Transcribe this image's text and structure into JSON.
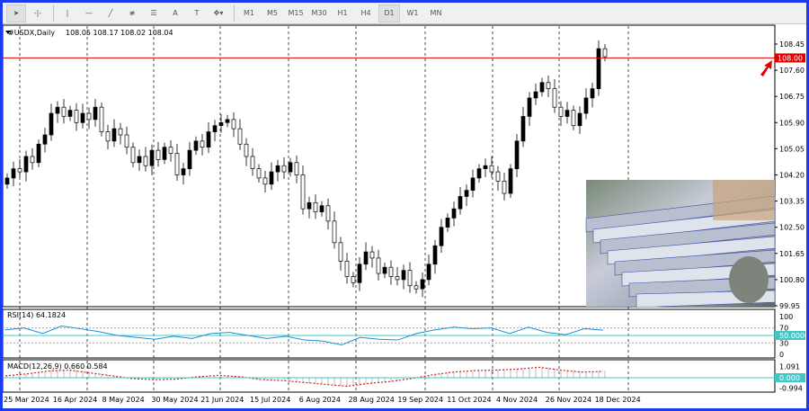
{
  "toolbar": {
    "tools": [
      "cursor-icon",
      "crosshair-icon",
      "vertical-line-icon",
      "horizontal-line-icon",
      "trendline-icon",
      "fibonacci-icon",
      "channel-icon",
      "text-icon",
      "text-label-icon",
      "shapes-icon"
    ],
    "text_A": "A",
    "text_T": "T",
    "timeframes": [
      "M1",
      "M5",
      "M15",
      "M30",
      "H1",
      "H4",
      "D1",
      "W1",
      "MN"
    ],
    "active_timeframe": "D1"
  },
  "chart": {
    "title": "#USDX,Daily",
    "ohlc": "108.05 108.17 108.02 108.04",
    "price_ticks": [
      "108.45",
      "107.60",
      "106.75",
      "105.90",
      "105.05",
      "104.20",
      "103.35",
      "102.50",
      "101.65",
      "100.80",
      "99.95"
    ],
    "hline_label": "108.00",
    "hline_color": "#e00000",
    "up_color": "#000000",
    "down_color": "#ffffff"
  },
  "rsi": {
    "label": "RSI(14) 64.1824",
    "ticks": [
      "100",
      "70",
      "50.0000",
      "30",
      "0"
    ],
    "color": "#1e90d0",
    "level_color": "#40c8c8"
  },
  "macd": {
    "label": "MACD(12,26,9) 0.660 0.584",
    "ticks": [
      "1.091",
      "0.000",
      "-0.994"
    ],
    "signal_color": "#d02020"
  },
  "dates": [
    "25 Mar 2024",
    "16 Apr 2024",
    "8 May 2024",
    "30 May 2024",
    "21 Jun 2024",
    "15 Jul 2024",
    "6 Aug 2024",
    "28 Aug 2024",
    "19 Sep 2024",
    "11 Oct 2024",
    "4 Nov 2024",
    "26 Nov 2024",
    "18 Dec 2024"
  ],
  "chart_data": {
    "type": "candlestick",
    "closes": [
      104.1,
      104.4,
      104.3,
      104.8,
      104.6,
      105.2,
      105.5,
      106.2,
      106.4,
      106.1,
      106.3,
      105.9,
      106.2,
      106.0,
      106.4,
      105.6,
      105.3,
      105.7,
      105.5,
      105.1,
      104.6,
      104.8,
      104.5,
      105.0,
      104.7,
      105.1,
      104.9,
      104.2,
      104.4,
      105.0,
      105.3,
      105.1,
      105.6,
      105.8,
      105.9,
      106.0,
      105.7,
      105.2,
      104.8,
      104.4,
      104.1,
      103.9,
      104.3,
      104.5,
      104.3,
      104.6,
      104.2,
      103.1,
      103.3,
      103.0,
      103.2,
      102.7,
      102.0,
      101.4,
      100.9,
      100.7,
      101.3,
      101.7,
      101.5,
      101.0,
      101.2,
      100.9,
      100.8,
      101.1,
      100.6,
      100.5,
      100.8,
      101.3,
      101.9,
      102.5,
      102.8,
      103.1,
      103.5,
      103.7,
      104.1,
      104.4,
      104.5,
      104.3,
      104.0,
      103.6,
      104.4,
      105.3,
      106.1,
      106.7,
      106.9,
      107.2,
      107.0,
      106.4,
      106.1,
      106.3,
      105.8,
      106.2,
      106.7,
      107.0,
      108.3,
      108.04
    ],
    "rsi": [
      65,
      70,
      55,
      75,
      68,
      60,
      50,
      45,
      40,
      48,
      42,
      55,
      58,
      50,
      42,
      48,
      38,
      35,
      25,
      45,
      40,
      38,
      55,
      65,
      72,
      68,
      70,
      55,
      72,
      58,
      52,
      68,
      64
    ],
    "macd_hist": [
      0.2,
      0.4,
      0.7,
      0.8,
      0.5,
      0.2,
      -0.1,
      -0.2,
      -0.15,
      0.1,
      0.25,
      0.1,
      -0.2,
      -0.3,
      -0.5,
      -0.7,
      -0.9,
      -0.6,
      -0.4,
      -0.1,
      0.3,
      0.6,
      0.75,
      0.8,
      0.9,
      1.1,
      0.8,
      0.6,
      0.66
    ],
    "price_range": [
      99.95,
      108.45
    ],
    "rsi_levels": [
      30,
      50,
      70
    ]
  }
}
